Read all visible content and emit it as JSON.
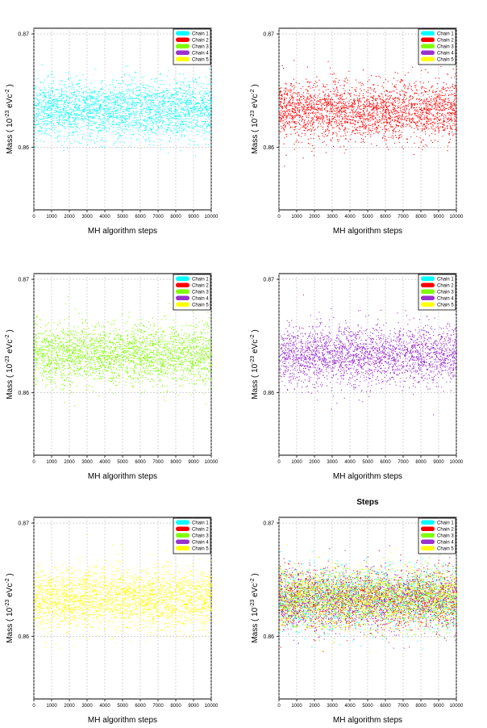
{
  "figure": {
    "shared_title_label": "Steps",
    "legend": [
      "Chain 1",
      "Chain 2",
      "Chain 3",
      "Chain 4",
      "Chain 5"
    ],
    "colors": {
      "Chain 1": "#00FFFF",
      "Chain 2": "#FF0000",
      "Chain 3": "#7FFF00",
      "Chain 4": "#9A32CD",
      "Chain 5": "#FFFF00"
    }
  },
  "chart_data": [
    {
      "type": "scatter",
      "title": "",
      "xlabel": "MH algorithm steps",
      "ylabel": "Mass ( 10^-23 eVc^-2 )",
      "xlim": [
        0,
        10000
      ],
      "ylim": [
        0.8545,
        0.8705
      ],
      "xticks": [
        0,
        1000,
        2000,
        3000,
        4000,
        5000,
        6000,
        7000,
        8000,
        9000,
        10000
      ],
      "yticks": [
        "0.86",
        "0.87"
      ],
      "series": [
        {
          "name": "Chain 1",
          "mean": 0.8634,
          "sd": 0.0013,
          "n": 10000
        }
      ],
      "legend": [
        "Chain 1",
        "Chain 2",
        "Chain 3",
        "Chain 4",
        "Chain 5"
      ],
      "legend_position": "top-right"
    },
    {
      "type": "scatter",
      "title": "",
      "xlabel": "MH algorithm steps",
      "ylabel": "Mass ( 10^-23 eVc^-2 )",
      "xlim": [
        0,
        10000
      ],
      "ylim": [
        0.8545,
        0.8705
      ],
      "xticks": [
        0,
        1000,
        2000,
        3000,
        4000,
        5000,
        6000,
        7000,
        8000,
        9000,
        10000
      ],
      "yticks": [
        "0.86",
        "0.87"
      ],
      "series": [
        {
          "name": "Chain 2",
          "mean": 0.8633,
          "sd": 0.0013,
          "n": 10000
        }
      ],
      "legend": [
        "Chain 1",
        "Chain 2",
        "Chain 3",
        "Chain 4",
        "Chain 5"
      ],
      "legend_position": "top-right"
    },
    {
      "type": "scatter",
      "title": "",
      "xlabel": "MH algorithm steps",
      "ylabel": "Mass ( 10^-23 eVc^-2 )",
      "xlim": [
        0,
        10000
      ],
      "ylim": [
        0.8545,
        0.8705
      ],
      "xticks": [
        0,
        1000,
        2000,
        3000,
        4000,
        5000,
        6000,
        7000,
        8000,
        9000,
        10000
      ],
      "yticks": [
        "0.86",
        "0.87"
      ],
      "series": [
        {
          "name": "Chain 3",
          "mean": 0.8634,
          "sd": 0.0013,
          "n": 10000
        }
      ],
      "legend": [
        "Chain 1",
        "Chain 2",
        "Chain 3",
        "Chain 4",
        "Chain 5"
      ],
      "legend_position": "top-right"
    },
    {
      "type": "scatter",
      "title": "",
      "xlabel": "MH algorithm steps",
      "ylabel": "Mass ( 10^-23 eVc^-2 )",
      "xlim": [
        0,
        10000
      ],
      "ylim": [
        0.8545,
        0.8705
      ],
      "xticks": [
        0,
        1000,
        2000,
        3000,
        4000,
        5000,
        6000,
        7000,
        8000,
        9000,
        10000
      ],
      "yticks": [
        "0.86",
        "0.87"
      ],
      "series": [
        {
          "name": "Chain 4",
          "mean": 0.8633,
          "sd": 0.0013,
          "n": 10000
        }
      ],
      "legend": [
        "Chain 1",
        "Chain 2",
        "Chain 3",
        "Chain 4",
        "Chain 5"
      ],
      "legend_position": "top-right"
    },
    {
      "type": "scatter",
      "title": "",
      "xlabel": "MH algorithm steps",
      "ylabel": "Mass ( 10^-23 eVc^-2 )",
      "xlim": [
        0,
        10000
      ],
      "ylim": [
        0.8545,
        0.8705
      ],
      "xticks": [
        0,
        1000,
        2000,
        3000,
        4000,
        5000,
        6000,
        7000,
        8000,
        9000,
        10000
      ],
      "yticks": [
        "0.86",
        "0.87"
      ],
      "series": [
        {
          "name": "Chain 5",
          "mean": 0.8634,
          "sd": 0.0013,
          "n": 10000
        }
      ],
      "legend": [
        "Chain 1",
        "Chain 2",
        "Chain 3",
        "Chain 4",
        "Chain 5"
      ],
      "legend_position": "top-right"
    },
    {
      "type": "scatter",
      "title": "Steps",
      "xlabel": "MH algorithm steps",
      "ylabel": "Mass ( 10^-23 eVc^-2 )",
      "xlim": [
        0,
        10000
      ],
      "ylim": [
        0.8545,
        0.8705
      ],
      "xticks": [
        0,
        1000,
        2000,
        3000,
        4000,
        5000,
        6000,
        7000,
        8000,
        9000,
        10000
      ],
      "yticks": [
        "0.86",
        "0.87"
      ],
      "series": [
        {
          "name": "Chain 1",
          "mean": 0.8634,
          "sd": 0.0013,
          "n": 10000
        },
        {
          "name": "Chain 2",
          "mean": 0.8633,
          "sd": 0.0013,
          "n": 10000
        },
        {
          "name": "Chain 3",
          "mean": 0.8634,
          "sd": 0.0013,
          "n": 10000
        },
        {
          "name": "Chain 4",
          "mean": 0.8633,
          "sd": 0.0013,
          "n": 10000
        },
        {
          "name": "Chain 5",
          "mean": 0.8634,
          "sd": 0.0013,
          "n": 10000
        }
      ],
      "legend": [
        "Chain 1",
        "Chain 2",
        "Chain 3",
        "Chain 4",
        "Chain 5"
      ],
      "legend_position": "top-right"
    }
  ]
}
